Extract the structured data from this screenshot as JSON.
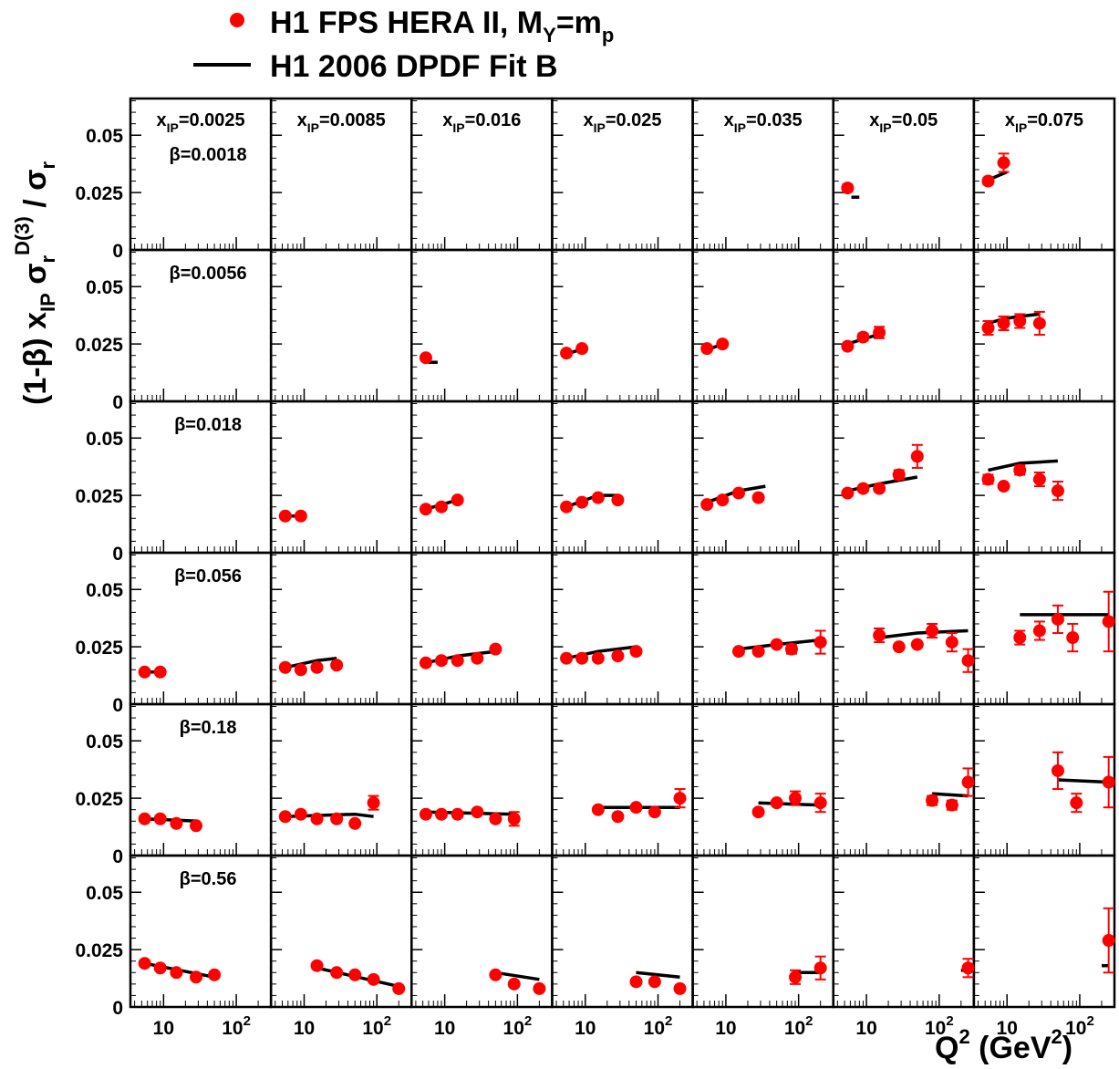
{
  "legend": {
    "data_label": "H1 FPS HERA II,  M",
    "data_sub1": "Y",
    "data_mid": "=m",
    "data_sub2": "p",
    "fit_label": "H1 2006 DPDF Fit B"
  },
  "colors": {
    "data": "#ff0000",
    "fit": "#000000",
    "frame": "#000000"
  },
  "axes": {
    "y_title_prefix": "(1-β) x",
    "y_title_sub": "IP",
    "y_title_sigma": " σ",
    "y_title_sub2": "r",
    "y_title_sup": "D(3)",
    "y_title_suffix": " / σ",
    "y_title_sub3": "r",
    "x_title_prefix": "Q",
    "x_title_sup": "2",
    "x_title_mid": " (GeV",
    "x_title_sup2": "2",
    "x_title_suffix": ")",
    "y_ticks": [
      {
        "value": 0,
        "label": "0"
      },
      {
        "value": 0.025,
        "label": "0.025"
      },
      {
        "value": 0.05,
        "label": "0.05"
      }
    ],
    "x_ticks": [
      {
        "value": 10,
        "label": "10",
        "sup": ""
      },
      {
        "value": 100,
        "label": "10",
        "sup": "2"
      }
    ]
  },
  "chart_data": {
    "type": "scatter",
    "x_scale": "log",
    "x_range": [
      3.5,
      300
    ],
    "y_range": [
      0,
      0.066
    ],
    "columns": [
      {
        "prefix": "x",
        "sub": "IP",
        "value": "=0.0025"
      },
      {
        "prefix": "x",
        "sub": "IP",
        "value": "=0.0085"
      },
      {
        "prefix": "x",
        "sub": "IP",
        "value": "=0.016"
      },
      {
        "prefix": "x",
        "sub": "IP",
        "value": "=0.025"
      },
      {
        "prefix": "x",
        "sub": "IP",
        "value": "=0.035"
      },
      {
        "prefix": "x",
        "sub": "IP",
        "value": "=0.05"
      },
      {
        "prefix": "x",
        "sub": "IP",
        "value": "=0.075"
      }
    ],
    "rows": [
      "β=0.0018",
      "β=0.0056",
      "β=0.018",
      "β=0.056",
      "β=0.18",
      "β=0.56"
    ],
    "panels": [
      {
        "row": 0,
        "col": 5,
        "points": [
          [
            5.5,
            0.027,
            0.0015
          ]
        ],
        "fit": [
          [
            6.2,
            0.023
          ],
          [
            8,
            0.023
          ]
        ]
      },
      {
        "row": 0,
        "col": 6,
        "points": [
          [
            5.5,
            0.03,
            0.0015
          ],
          [
            9,
            0.038,
            0.004
          ]
        ],
        "fit": [
          [
            6,
            0.031
          ],
          [
            10,
            0.034
          ]
        ]
      },
      {
        "row": 1,
        "col": 2,
        "points": [
          [
            5.5,
            0.019,
            0.001
          ]
        ],
        "fit": [
          [
            6,
            0.017
          ],
          [
            8,
            0.017
          ]
        ]
      },
      {
        "row": 1,
        "col": 3,
        "points": [
          [
            5.5,
            0.021,
            0.001
          ],
          [
            9,
            0.023,
            0.001
          ]
        ],
        "fit": [
          [
            6,
            0.021
          ],
          [
            9.5,
            0.023
          ]
        ]
      },
      {
        "row": 1,
        "col": 4,
        "points": [
          [
            5.5,
            0.023,
            0.001
          ],
          [
            9,
            0.025,
            0.001
          ]
        ],
        "fit": [
          [
            6,
            0.023
          ],
          [
            9.5,
            0.025
          ]
        ]
      },
      {
        "row": 1,
        "col": 5,
        "points": [
          [
            5.5,
            0.024,
            0.001
          ],
          [
            9,
            0.028,
            0.0015
          ],
          [
            15,
            0.03,
            0.0025
          ]
        ],
        "fit": [
          [
            5.5,
            0.025
          ],
          [
            18,
            0.03
          ]
        ]
      },
      {
        "row": 1,
        "col": 6,
        "points": [
          [
            5.5,
            0.032,
            0.003
          ],
          [
            9,
            0.034,
            0.003
          ],
          [
            15,
            0.035,
            0.003
          ],
          [
            28,
            0.034,
            0.005
          ]
        ],
        "fit": [
          [
            5.5,
            0.034
          ],
          [
            9,
            0.036
          ],
          [
            15,
            0.037
          ],
          [
            28,
            0.038
          ]
        ]
      },
      {
        "row": 2,
        "col": 1,
        "points": [
          [
            5.5,
            0.016,
            0.001
          ],
          [
            9,
            0.016,
            0.001
          ]
        ],
        "fit": [
          [
            5.5,
            0.016
          ],
          [
            9,
            0.016
          ]
        ]
      },
      {
        "row": 2,
        "col": 2,
        "points": [
          [
            5.5,
            0.019,
            0.001
          ],
          [
            9,
            0.02,
            0.001
          ],
          [
            15,
            0.023,
            0.001
          ]
        ],
        "fit": [
          [
            5.5,
            0.019
          ],
          [
            15,
            0.023
          ]
        ]
      },
      {
        "row": 2,
        "col": 3,
        "points": [
          [
            5.5,
            0.02,
            0.001
          ],
          [
            9,
            0.022,
            0.001
          ],
          [
            15,
            0.024,
            0.001
          ],
          [
            28,
            0.023,
            0.001
          ]
        ],
        "fit": [
          [
            5.5,
            0.02
          ],
          [
            15,
            0.025
          ],
          [
            28,
            0.025
          ]
        ]
      },
      {
        "row": 2,
        "col": 4,
        "points": [
          [
            5.5,
            0.021,
            0.001
          ],
          [
            9,
            0.023,
            0.001
          ],
          [
            15,
            0.026,
            0.001
          ],
          [
            28,
            0.024,
            0.001
          ]
        ],
        "fit": [
          [
            5.5,
            0.022
          ],
          [
            15,
            0.027
          ],
          [
            35,
            0.029
          ]
        ]
      },
      {
        "row": 2,
        "col": 5,
        "points": [
          [
            5.5,
            0.026,
            0.001
          ],
          [
            9,
            0.028,
            0.001
          ],
          [
            15,
            0.028,
            0.001
          ],
          [
            28,
            0.034,
            0.002
          ],
          [
            50,
            0.042,
            0.005
          ]
        ],
        "fit": [
          [
            5.5,
            0.027
          ],
          [
            15,
            0.03
          ],
          [
            50,
            0.033
          ]
        ]
      },
      {
        "row": 2,
        "col": 6,
        "points": [
          [
            5.5,
            0.032,
            0.002
          ],
          [
            9,
            0.029,
            0.001
          ],
          [
            15,
            0.036,
            0.002
          ],
          [
            28,
            0.032,
            0.003
          ],
          [
            50,
            0.027,
            0.004
          ]
        ],
        "fit": [
          [
            5.5,
            0.036
          ],
          [
            15,
            0.039
          ],
          [
            50,
            0.04
          ]
        ]
      },
      {
        "row": 3,
        "col": 0,
        "points": [
          [
            5.5,
            0.014,
            0.001
          ],
          [
            9,
            0.014,
            0.001
          ]
        ],
        "fit": [
          [
            5.5,
            0.014
          ],
          [
            9,
            0.014
          ]
        ]
      },
      {
        "row": 3,
        "col": 1,
        "points": [
          [
            5.5,
            0.016,
            0.001
          ],
          [
            9,
            0.015,
            0.001
          ],
          [
            15,
            0.016,
            0.001
          ],
          [
            28,
            0.017,
            0.001
          ]
        ],
        "fit": [
          [
            5.5,
            0.016
          ],
          [
            15,
            0.019
          ],
          [
            28,
            0.02
          ]
        ]
      },
      {
        "row": 3,
        "col": 2,
        "points": [
          [
            5.5,
            0.018,
            0.001
          ],
          [
            9,
            0.019,
            0.001
          ],
          [
            15,
            0.019,
            0.001
          ],
          [
            28,
            0.02,
            0.001
          ],
          [
            50,
            0.024,
            0.001
          ]
        ],
        "fit": [
          [
            5.5,
            0.018
          ],
          [
            15,
            0.021
          ],
          [
            50,
            0.023
          ]
        ]
      },
      {
        "row": 3,
        "col": 3,
        "points": [
          [
            5.5,
            0.02,
            0.001
          ],
          [
            9,
            0.02,
            0.001
          ],
          [
            15,
            0.02,
            0.001
          ],
          [
            28,
            0.021,
            0.001
          ],
          [
            50,
            0.023,
            0.001
          ]
        ],
        "fit": [
          [
            5.5,
            0.02
          ],
          [
            15,
            0.023
          ],
          [
            50,
            0.025
          ]
        ]
      },
      {
        "row": 3,
        "col": 4,
        "points": [
          [
            15,
            0.023,
            0.001
          ],
          [
            28,
            0.023,
            0.001
          ],
          [
            50,
            0.026,
            0.001
          ],
          [
            80,
            0.024,
            0.002
          ],
          [
            200,
            0.027,
            0.005
          ]
        ],
        "fit": [
          [
            15,
            0.024
          ],
          [
            50,
            0.026
          ],
          [
            200,
            0.028
          ]
        ]
      },
      {
        "row": 3,
        "col": 5,
        "points": [
          [
            15,
            0.03,
            0.003
          ],
          [
            28,
            0.025,
            0.001
          ],
          [
            50,
            0.026,
            0.001
          ],
          [
            80,
            0.032,
            0.003
          ],
          [
            150,
            0.027,
            0.004
          ],
          [
            250,
            0.019,
            0.005
          ]
        ],
        "fit": [
          [
            15,
            0.029
          ],
          [
            50,
            0.031
          ],
          [
            250,
            0.032
          ]
        ]
      },
      {
        "row": 3,
        "col": 6,
        "points": [
          [
            15,
            0.029,
            0.003
          ],
          [
            28,
            0.032,
            0.004
          ],
          [
            50,
            0.037,
            0.006
          ],
          [
            80,
            0.029,
            0.006
          ],
          [
            250,
            0.036,
            0.013
          ]
        ],
        "fit": [
          [
            15,
            0.039
          ],
          [
            80,
            0.039
          ],
          [
            250,
            0.039
          ]
        ]
      },
      {
        "row": 4,
        "col": 0,
        "points": [
          [
            5.5,
            0.016,
            0.001
          ],
          [
            9,
            0.016,
            0.001
          ],
          [
            15,
            0.014,
            0.001
          ],
          [
            28,
            0.013,
            0.001
          ]
        ],
        "fit": [
          [
            5.5,
            0.016
          ],
          [
            30,
            0.015
          ]
        ]
      },
      {
        "row": 4,
        "col": 1,
        "points": [
          [
            5.5,
            0.017,
            0.001
          ],
          [
            9,
            0.018,
            0.001
          ],
          [
            15,
            0.016,
            0.001
          ],
          [
            28,
            0.016,
            0.001
          ],
          [
            50,
            0.014,
            0.001
          ],
          [
            90,
            0.023,
            0.003
          ]
        ],
        "fit": [
          [
            5.5,
            0.017
          ],
          [
            50,
            0.018
          ],
          [
            90,
            0.017
          ]
        ]
      },
      {
        "row": 4,
        "col": 2,
        "points": [
          [
            5.5,
            0.018,
            0.001
          ],
          [
            9,
            0.018,
            0.001
          ],
          [
            15,
            0.018,
            0.001
          ],
          [
            28,
            0.019,
            0.001
          ],
          [
            50,
            0.016,
            0.001
          ],
          [
            90,
            0.016,
            0.003
          ]
        ],
        "fit": [
          [
            5.5,
            0.019
          ],
          [
            90,
            0.018
          ]
        ]
      },
      {
        "row": 4,
        "col": 3,
        "points": [
          [
            15,
            0.02,
            0.001
          ],
          [
            28,
            0.017,
            0.001
          ],
          [
            50,
            0.021,
            0.001
          ],
          [
            90,
            0.019,
            0.001
          ],
          [
            200,
            0.025,
            0.004
          ]
        ],
        "fit": [
          [
            15,
            0.021
          ],
          [
            200,
            0.021
          ]
        ]
      },
      {
        "row": 4,
        "col": 4,
        "points": [
          [
            28,
            0.019,
            0.001
          ],
          [
            50,
            0.023,
            0.001
          ],
          [
            90,
            0.025,
            0.003
          ],
          [
            200,
            0.023,
            0.004
          ]
        ],
        "fit": [
          [
            28,
            0.023
          ],
          [
            200,
            0.022
          ]
        ]
      },
      {
        "row": 4,
        "col": 5,
        "points": [
          [
            80,
            0.024,
            0.002
          ],
          [
            150,
            0.022,
            0.002
          ],
          [
            250,
            0.032,
            0.006
          ]
        ],
        "fit": [
          [
            80,
            0.027
          ],
          [
            250,
            0.026
          ]
        ]
      },
      {
        "row": 4,
        "col": 6,
        "points": [
          [
            50,
            0.037,
            0.008
          ],
          [
            90,
            0.023,
            0.004
          ],
          [
            250,
            0.032,
            0.011
          ]
        ],
        "fit": [
          [
            50,
            0.033
          ],
          [
            250,
            0.032
          ]
        ]
      },
      {
        "row": 5,
        "col": 0,
        "points": [
          [
            5.5,
            0.019,
            0.001
          ],
          [
            9,
            0.017,
            0.001
          ],
          [
            15,
            0.015,
            0.001
          ],
          [
            28,
            0.013,
            0.001
          ],
          [
            50,
            0.014,
            0.001
          ]
        ],
        "fit": [
          [
            5.5,
            0.019
          ],
          [
            50,
            0.013
          ]
        ]
      },
      {
        "row": 5,
        "col": 1,
        "points": [
          [
            15,
            0.018,
            0.001
          ],
          [
            28,
            0.015,
            0.001
          ],
          [
            50,
            0.014,
            0.001
          ],
          [
            90,
            0.012,
            0.001
          ],
          [
            200,
            0.008,
            0.001
          ]
        ],
        "fit": [
          [
            15,
            0.017
          ],
          [
            200,
            0.009
          ]
        ]
      },
      {
        "row": 5,
        "col": 2,
        "points": [
          [
            50,
            0.014,
            0.001
          ],
          [
            90,
            0.01,
            0.001
          ],
          [
            200,
            0.008,
            0.001
          ]
        ],
        "fit": [
          [
            50,
            0.015
          ],
          [
            200,
            0.012
          ]
        ]
      },
      {
        "row": 5,
        "col": 3,
        "points": [
          [
            50,
            0.011,
            0.001
          ],
          [
            90,
            0.011,
            0.001
          ],
          [
            200,
            0.008,
            0.001
          ]
        ],
        "fit": [
          [
            50,
            0.015
          ],
          [
            200,
            0.013
          ]
        ]
      },
      {
        "row": 5,
        "col": 4,
        "points": [
          [
            90,
            0.013,
            0.003
          ],
          [
            200,
            0.017,
            0.005
          ]
        ],
        "fit": [
          [
            90,
            0.015
          ],
          [
            200,
            0.015
          ]
        ]
      },
      {
        "row": 5,
        "col": 5,
        "points": [
          [
            250,
            0.017,
            0.004
          ]
        ],
        "fit": [
          [
            200,
            0.016
          ],
          [
            250,
            0.016
          ]
        ]
      },
      {
        "row": 5,
        "col": 6,
        "points": [
          [
            250,
            0.029,
            0.014
          ]
        ],
        "fit": [
          [
            200,
            0.018
          ],
          [
            250,
            0.018
          ]
        ]
      }
    ]
  }
}
